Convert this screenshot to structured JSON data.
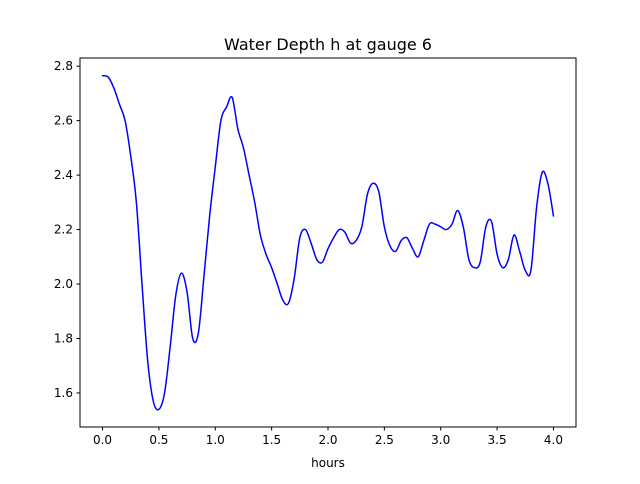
{
  "chart_data": {
    "type": "line",
    "title": "Water Depth h at gauge 6",
    "xlabel": "hours",
    "ylabel": "",
    "xlim": [
      -0.2,
      4.2
    ],
    "ylim": [
      1.475,
      2.83
    ],
    "xticks": [
      0.0,
      0.5,
      1.0,
      1.5,
      2.0,
      2.5,
      3.0,
      3.5,
      4.0
    ],
    "xtick_labels": [
      "0.0",
      "0.5",
      "1.0",
      "1.5",
      "2.0",
      "2.5",
      "3.0",
      "3.5",
      "4.0"
    ],
    "yticks": [
      1.6,
      1.8,
      2.0,
      2.2,
      2.4,
      2.6,
      2.8
    ],
    "ytick_labels": [
      "1.6",
      "1.8",
      "2.0",
      "2.2",
      "2.4",
      "2.6",
      "2.8"
    ],
    "grid": false,
    "legend": "none",
    "series": [
      {
        "color": "#0000ff",
        "x": [
          0.0,
          0.05,
          0.1,
          0.15,
          0.2,
          0.25,
          0.3,
          0.35,
          0.4,
          0.45,
          0.5,
          0.55,
          0.6,
          0.65,
          0.7,
          0.75,
          0.8,
          0.85,
          0.9,
          0.95,
          1.0,
          1.05,
          1.1,
          1.15,
          1.2,
          1.25,
          1.3,
          1.35,
          1.4,
          1.45,
          1.5,
          1.55,
          1.6,
          1.65,
          1.7,
          1.75,
          1.8,
          1.85,
          1.9,
          1.95,
          2.0,
          2.05,
          2.1,
          2.15,
          2.2,
          2.25,
          2.3,
          2.35,
          2.4,
          2.45,
          2.5,
          2.55,
          2.6,
          2.65,
          2.7,
          2.75,
          2.8,
          2.85,
          2.9,
          2.95,
          3.0,
          3.05,
          3.1,
          3.15,
          3.2,
          3.25,
          3.3,
          3.35,
          3.4,
          3.45,
          3.5,
          3.55,
          3.6,
          3.65,
          3.7,
          3.75,
          3.8,
          3.85,
          3.9,
          3.95,
          4.0
        ],
        "y": [
          2.765,
          2.76,
          2.72,
          2.66,
          2.6,
          2.47,
          2.3,
          2.0,
          1.72,
          1.57,
          1.54,
          1.6,
          1.77,
          1.96,
          2.04,
          1.97,
          1.8,
          1.82,
          2.03,
          2.25,
          2.43,
          2.6,
          2.65,
          2.685,
          2.57,
          2.5,
          2.4,
          2.3,
          2.18,
          2.11,
          2.06,
          2.0,
          1.94,
          1.93,
          2.02,
          2.17,
          2.2,
          2.15,
          2.09,
          2.08,
          2.13,
          2.17,
          2.2,
          2.19,
          2.15,
          2.16,
          2.21,
          2.33,
          2.37,
          2.34,
          2.21,
          2.14,
          2.12,
          2.16,
          2.17,
          2.13,
          2.1,
          2.16,
          2.22,
          2.22,
          2.21,
          2.2,
          2.22,
          2.27,
          2.21,
          2.09,
          2.06,
          2.08,
          2.21,
          2.23,
          2.11,
          2.06,
          2.09,
          2.18,
          2.12,
          2.05,
          2.05,
          2.28,
          2.41,
          2.37,
          2.25
        ]
      }
    ]
  }
}
